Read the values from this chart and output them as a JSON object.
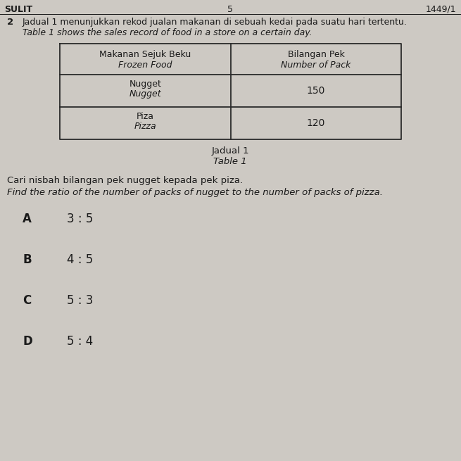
{
  "background_color": "#cdc9c3",
  "header_left": "SULIT",
  "header_center": "5",
  "header_right": "1449/1",
  "question_number": "2",
  "question_malay": "Jadual 1 menunjukkan rekod jualan makanan di sebuah kedai pada suatu hari tertentu.",
  "question_english": "Table 1 shows the sales record of food in a store on a certain day.",
  "col1_header_line1": "Makanan Sejuk Beku",
  "col1_header_line2": "Frozen Food",
  "col2_header_line1": "Bilangan Pek",
  "col2_header_line2": "Number of Pack",
  "row1_col1_line1": "Nugget",
  "row1_col1_line2": "Nugget",
  "row1_col2": "150",
  "row2_col1_line1": "Piza",
  "row2_col1_line2": "Pizza",
  "row2_col2": "120",
  "table_caption_line1": "Jadual 1",
  "table_caption_line2": "Table 1",
  "question_malay2": "Cari nisbah bilangan pek nugget kepada pek piza.",
  "question_english2": "Find the ratio of the number of packs of nugget to the number of packs of pizza.",
  "option_A_label": "A",
  "option_A_text": "3 : 5",
  "option_B_label": "B",
  "option_B_text": "4 : 5",
  "option_C_label": "C",
  "option_C_text": "5 : 3",
  "option_D_label": "D",
  "option_D_text": "5 : 4",
  "text_color": "#1a1a1a",
  "table_border_color": "#2a2a2a"
}
